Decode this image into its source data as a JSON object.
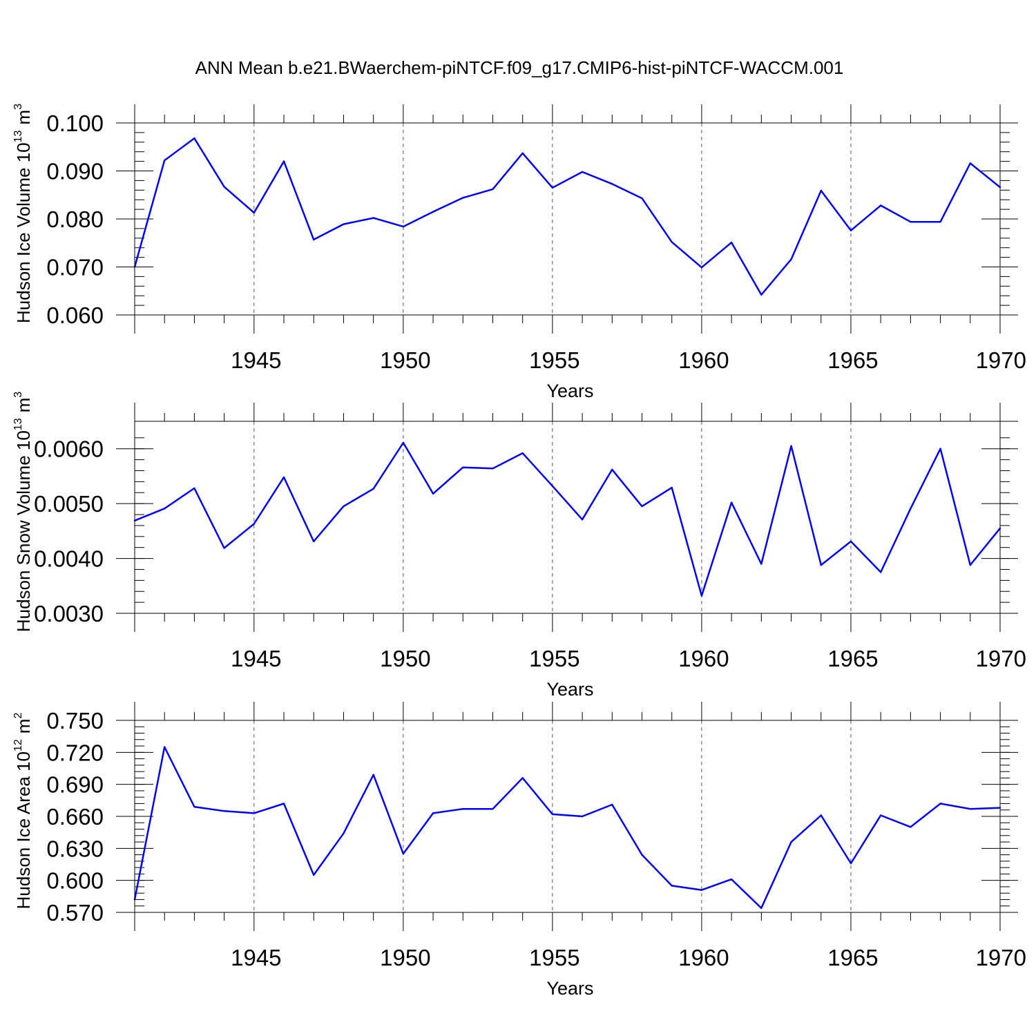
{
  "figure_title": "ANN Mean b.e21.BWaerchem-piNTCF.f09_g17.CMIP6-hist-piNTCF-WACCM.001",
  "colors": {
    "line": "#0000ff",
    "axis": "#000000",
    "grid": "#555555"
  },
  "chart_data": [
    {
      "type": "line",
      "name": "ice-volume",
      "title": "ANN Mean b.e21.BWaerchem-piNTCF.f09_g17.CMIP6-hist-piNTCF-WACCM.001",
      "xlabel": "Years",
      "ylabel": {
        "text": "Hudson Ice Volume 10",
        "exponent": "13",
        "unit": "m",
        "unit_exponent": "3"
      },
      "xlim": [
        1941,
        1970
      ],
      "ylim": [
        0.06,
        0.1
      ],
      "xticks": [
        1945,
        1950,
        1955,
        1960,
        1965,
        1970
      ],
      "yticks": [
        0.06,
        0.07,
        0.08,
        0.09,
        0.1
      ],
      "ytick_labels": [
        "0.060",
        "0.070",
        "0.080",
        "0.090",
        "0.100"
      ],
      "y_minor": 0.002,
      "x": [
        1941,
        1942,
        1943,
        1944,
        1945,
        1946,
        1947,
        1948,
        1949,
        1950,
        1951,
        1952,
        1953,
        1954,
        1955,
        1956,
        1957,
        1958,
        1959,
        1960,
        1961,
        1962,
        1963,
        1964,
        1965,
        1966,
        1967,
        1968,
        1969,
        1970
      ],
      "values": [
        0.07,
        0.0922,
        0.0968,
        0.0867,
        0.0813,
        0.092,
        0.0757,
        0.0789,
        0.0802,
        0.0784,
        0.0815,
        0.0844,
        0.0862,
        0.0937,
        0.0865,
        0.0898,
        0.0873,
        0.0843,
        0.0752,
        0.0699,
        0.0751,
        0.0642,
        0.0716,
        0.0859,
        0.0776,
        0.0828,
        0.0794,
        0.0794,
        0.0916,
        0.0866
      ]
    },
    {
      "type": "line",
      "name": "snow-volume",
      "title": "",
      "xlabel": "Years",
      "ylabel": {
        "text": "Hudson Snow Volume 10",
        "exponent": "13",
        "unit": "m",
        "unit_exponent": "3"
      },
      "xlim": [
        1941,
        1970
      ],
      "ylim": [
        0.003,
        0.0065
      ],
      "xticks": [
        1945,
        1950,
        1955,
        1960,
        1965,
        1970
      ],
      "yticks": [
        0.003,
        0.004,
        0.005,
        0.006
      ],
      "ytick_labels": [
        "0.0030",
        "0.0040",
        "0.0050",
        "0.0060"
      ],
      "y_minor": 0.0002,
      "x": [
        1941,
        1942,
        1943,
        1944,
        1945,
        1946,
        1947,
        1948,
        1949,
        1950,
        1951,
        1952,
        1953,
        1954,
        1955,
        1956,
        1957,
        1958,
        1959,
        1960,
        1961,
        1962,
        1963,
        1964,
        1965,
        1966,
        1967,
        1968,
        1969,
        1970
      ],
      "values": [
        0.00469,
        0.00491,
        0.00528,
        0.00419,
        0.00463,
        0.00548,
        0.00431,
        0.00495,
        0.00527,
        0.00611,
        0.00518,
        0.00566,
        0.00564,
        0.00592,
        0.00532,
        0.00471,
        0.00562,
        0.00495,
        0.00529,
        0.00332,
        0.00502,
        0.0039,
        0.00605,
        0.00388,
        0.00431,
        0.00375,
        0.00491,
        0.006,
        0.00388,
        0.00455
      ]
    },
    {
      "type": "line",
      "name": "ice-area",
      "title": "",
      "xlabel": "Years",
      "ylabel": {
        "text": "Hudson Ice Area 10",
        "exponent": "12",
        "unit": "m",
        "unit_exponent": "2"
      },
      "xlim": [
        1941,
        1970
      ],
      "ylim": [
        0.57,
        0.75
      ],
      "xticks": [
        1945,
        1950,
        1955,
        1960,
        1965,
        1970
      ],
      "yticks": [
        0.57,
        0.6,
        0.63,
        0.66,
        0.69,
        0.72,
        0.75
      ],
      "ytick_labels": [
        "0.570",
        "0.600",
        "0.630",
        "0.660",
        "0.690",
        "0.720",
        "0.750"
      ],
      "y_minor": 0.006,
      "x": [
        1941,
        1942,
        1943,
        1944,
        1945,
        1946,
        1947,
        1948,
        1949,
        1950,
        1951,
        1952,
        1953,
        1954,
        1955,
        1956,
        1957,
        1958,
        1959,
        1960,
        1961,
        1962,
        1963,
        1964,
        1965,
        1966,
        1967,
        1968,
        1969,
        1970
      ],
      "values": [
        0.582,
        0.725,
        0.669,
        0.665,
        0.663,
        0.672,
        0.605,
        0.644,
        0.699,
        0.625,
        0.663,
        0.667,
        0.667,
        0.696,
        0.662,
        0.66,
        0.671,
        0.624,
        0.595,
        0.591,
        0.601,
        0.574,
        0.636,
        0.661,
        0.616,
        0.661,
        0.65,
        0.672,
        0.667,
        0.668
      ]
    }
  ]
}
